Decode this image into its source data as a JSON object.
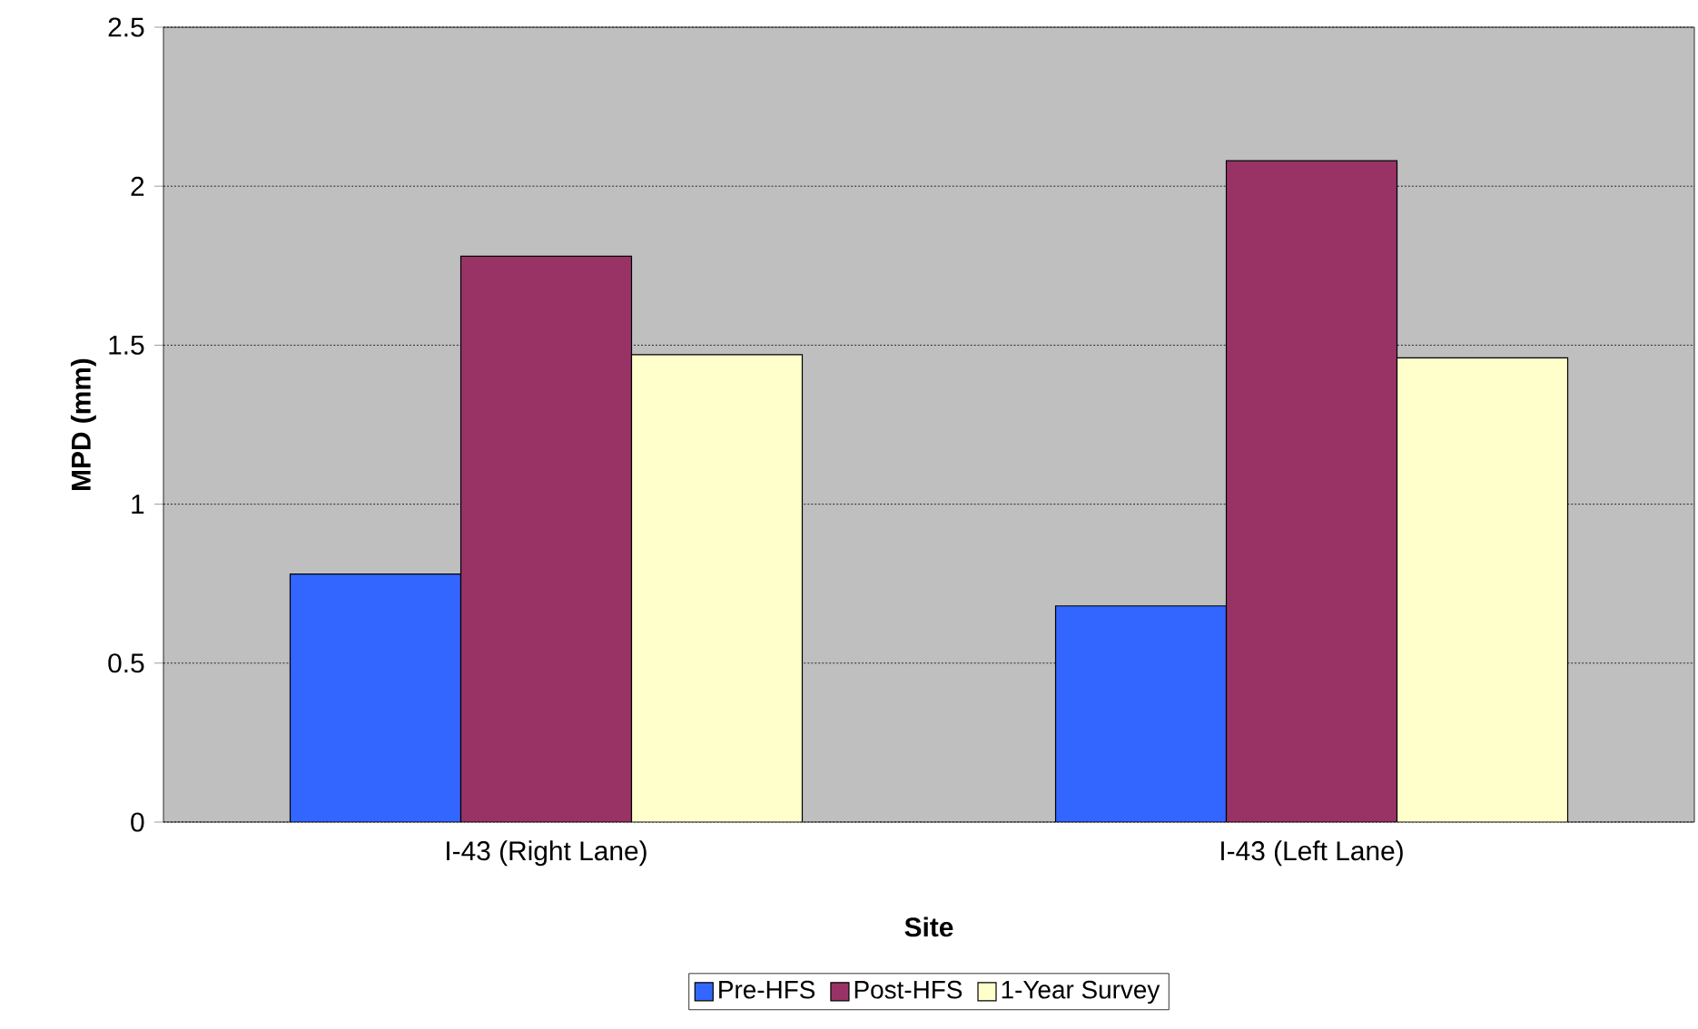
{
  "chart_data": {
    "type": "bar",
    "xlabel": "Site",
    "ylabel": "MPD (mm)",
    "categories": [
      "I-43 (Right Lane)",
      "I-43 (Left Lane)"
    ],
    "series": [
      {
        "name": "Pre-HFS",
        "color": "#3366ff",
        "values": [
          0.78,
          0.68
        ]
      },
      {
        "name": "Post-HFS",
        "color": "#993366",
        "values": [
          1.78,
          2.08
        ]
      },
      {
        "name": "1-Year Survey",
        "color": "#ffffcc",
        "values": [
          1.47,
          1.46
        ]
      }
    ],
    "ylim": [
      0,
      2.5
    ],
    "yticks": [
      0,
      0.5,
      1,
      1.5,
      2,
      2.5
    ],
    "grid": "y",
    "legend": "bottom"
  }
}
